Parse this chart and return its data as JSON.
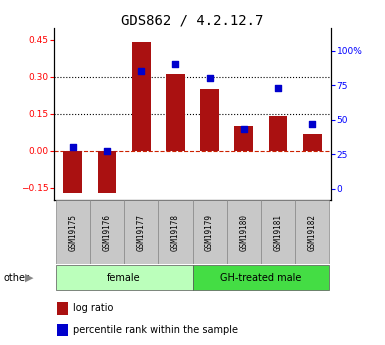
{
  "title": "GDS862 / 4.2.12.7",
  "samples": [
    "GSM19175",
    "GSM19176",
    "GSM19177",
    "GSM19178",
    "GSM19179",
    "GSM19180",
    "GSM19181",
    "GSM19182"
  ],
  "log_ratio": [
    -0.17,
    -0.17,
    0.44,
    0.31,
    0.25,
    0.1,
    0.14,
    0.07
  ],
  "percentile_rank": [
    30,
    27,
    85,
    90,
    80,
    43,
    73,
    47
  ],
  "bar_color": "#AA1111",
  "square_color": "#0000CC",
  "ylim_left": [
    -0.2,
    0.5
  ],
  "yticks_left": [
    -0.15,
    0.0,
    0.15,
    0.3,
    0.45
  ],
  "ylim_right": [
    -8.333,
    116.667
  ],
  "yticks_right": [
    0,
    25,
    50,
    75,
    100
  ],
  "ytick_labels_right": [
    "0",
    "25",
    "50",
    "75",
    "100%"
  ],
  "hlines": [
    0.15,
    0.3
  ],
  "zero_line": 0.0,
  "groups": [
    {
      "label": "female",
      "start": 0,
      "end": 3,
      "color": "#bbffbb"
    },
    {
      "label": "GH-treated male",
      "start": 4,
      "end": 7,
      "color": "#44dd44"
    }
  ],
  "other_label": "other",
  "legend_items": [
    "log ratio",
    "percentile rank within the sample"
  ],
  "title_fontsize": 10,
  "tick_fontsize": 6.5,
  "sample_fontsize": 5.5,
  "group_fontsize": 7,
  "legend_fontsize": 7
}
